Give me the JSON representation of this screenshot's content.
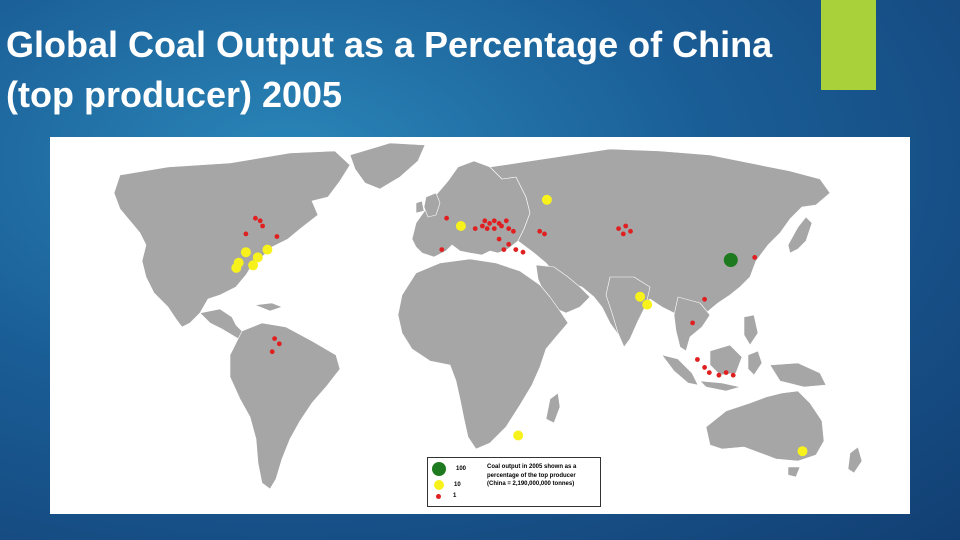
{
  "slide": {
    "title_line1": "Global Coal Output as a Percentage of China",
    "title_line2": "(top producer) 2005",
    "accent_color": "#a8d13a"
  },
  "map": {
    "land_color": "#a6a6a6",
    "water_color": "#ffffff",
    "legend": {
      "entries": [
        {
          "value": "100",
          "color": "#1e7a1e"
        },
        {
          "value": "10",
          "color": "#f7f21c"
        },
        {
          "value": "1",
          "color": "#e02020"
        }
      ],
      "text_lines": [
        "Coal output in 2005 shown as a",
        "percentage of the top producer",
        "(China = 2,190,000,000 tonnes)"
      ]
    },
    "markers": [
      {
        "region": "China",
        "level": "100",
        "lon": 117,
        "lat": 37
      },
      {
        "region": "USA",
        "level": "10",
        "lon": -81,
        "lat": 38
      },
      {
        "region": "USA",
        "level": "10",
        "lon": -86,
        "lat": 40
      },
      {
        "region": "USA",
        "level": "10",
        "lon": -77,
        "lat": 41
      },
      {
        "region": "USA",
        "level": "10",
        "lon": -83,
        "lat": 35
      },
      {
        "region": "USA",
        "level": "10",
        "lon": -89,
        "lat": 36
      },
      {
        "region": "USA",
        "level": "10",
        "lon": -90,
        "lat": 34
      },
      {
        "region": "Russia",
        "level": "10",
        "lon": 40,
        "lat": 60
      },
      {
        "region": "Germany",
        "level": "10",
        "lon": 4,
        "lat": 50
      },
      {
        "region": "India",
        "level": "10",
        "lon": 79,
        "lat": 23
      },
      {
        "region": "India",
        "level": "10",
        "lon": 82,
        "lat": 20
      },
      {
        "region": "South Africa",
        "level": "10",
        "lon": 28,
        "lat": -30
      },
      {
        "region": "Australia",
        "level": "10",
        "lon": 147,
        "lat": -36
      },
      {
        "region": "Canada",
        "level": "1",
        "lon": -82,
        "lat": 53
      },
      {
        "region": "Canada",
        "level": "1",
        "lon": -80,
        "lat": 52
      },
      {
        "region": "Canada",
        "level": "1",
        "lon": -79,
        "lat": 50
      },
      {
        "region": "Canada",
        "level": "1",
        "lon": -86,
        "lat": 47
      },
      {
        "region": "Canada",
        "level": "1",
        "lon": -73,
        "lat": 46
      },
      {
        "region": "UK",
        "level": "1",
        "lon": -2,
        "lat": 53
      },
      {
        "region": "Europe",
        "level": "1",
        "lon": 14,
        "lat": 52
      },
      {
        "region": "Europe",
        "level": "1",
        "lon": 16,
        "lat": 51
      },
      {
        "region": "Europe",
        "level": "1",
        "lon": 18,
        "lat": 52
      },
      {
        "region": "Europe",
        "level": "1",
        "lon": 20,
        "lat": 51
      },
      {
        "region": "Europe",
        "level": "1",
        "lon": 15,
        "lat": 49
      },
      {
        "region": "Europe",
        "level": "1",
        "lon": 18,
        "lat": 49
      },
      {
        "region": "Europe",
        "level": "1",
        "lon": 21,
        "lat": 50
      },
      {
        "region": "Europe",
        "level": "1",
        "lon": 23,
        "lat": 52
      },
      {
        "region": "Europe",
        "level": "1",
        "lon": 24,
        "lat": 49
      },
      {
        "region": "Europe",
        "level": "1",
        "lon": 13,
        "lat": 50
      },
      {
        "region": "Europe",
        "level": "1",
        "lon": 10,
        "lat": 49
      },
      {
        "region": "Europe",
        "level": "1",
        "lon": 26,
        "lat": 48
      },
      {
        "region": "Europe",
        "level": "1",
        "lon": 20,
        "lat": 45
      },
      {
        "region": "Europe",
        "level": "1",
        "lon": 24,
        "lat": 43
      },
      {
        "region": "Europe",
        "level": "1",
        "lon": 22,
        "lat": 41
      },
      {
        "region": "Europe",
        "level": "1",
        "lon": 27,
        "lat": 41
      },
      {
        "region": "Europe",
        "level": "1",
        "lon": 30,
        "lat": 40
      },
      {
        "region": "Europe",
        "level": "1",
        "lon": 37,
        "lat": 48
      },
      {
        "region": "Europe",
        "level": "1",
        "lon": 39,
        "lat": 47
      },
      {
        "region": "Spain",
        "level": "1",
        "lon": -4,
        "lat": 41
      },
      {
        "region": "Kazakhstan",
        "level": "1",
        "lon": 70,
        "lat": 49
      },
      {
        "region": "Kazakhstan",
        "level": "1",
        "lon": 73,
        "lat": 50
      },
      {
        "region": "Kazakhstan",
        "level": "1",
        "lon": 75,
        "lat": 48
      },
      {
        "region": "Kazakhstan",
        "level": "1",
        "lon": 72,
        "lat": 47
      },
      {
        "region": "Korea",
        "level": "1",
        "lon": 127,
        "lat": 38
      },
      {
        "region": "Vietnam",
        "level": "1",
        "lon": 106,
        "lat": 22
      },
      {
        "region": "Thailand",
        "level": "1",
        "lon": 101,
        "lat": 13
      },
      {
        "region": "Indonesia",
        "level": "1",
        "lon": 103,
        "lat": -1
      },
      {
        "region": "Indonesia",
        "level": "1",
        "lon": 106,
        "lat": -4
      },
      {
        "region": "Indonesia",
        "level": "1",
        "lon": 108,
        "lat": -6
      },
      {
        "region": "Indonesia",
        "level": "1",
        "lon": 112,
        "lat": -7
      },
      {
        "region": "Indonesia",
        "level": "1",
        "lon": 115,
        "lat": -6
      },
      {
        "region": "Indonesia",
        "level": "1",
        "lon": 118,
        "lat": -7
      },
      {
        "region": "Colombia",
        "level": "1",
        "lon": -74,
        "lat": 7
      },
      {
        "region": "Colombia",
        "level": "1",
        "lon": -72,
        "lat": 5
      },
      {
        "region": "Colombia",
        "level": "1",
        "lon": -75,
        "lat": 2
      }
    ]
  }
}
